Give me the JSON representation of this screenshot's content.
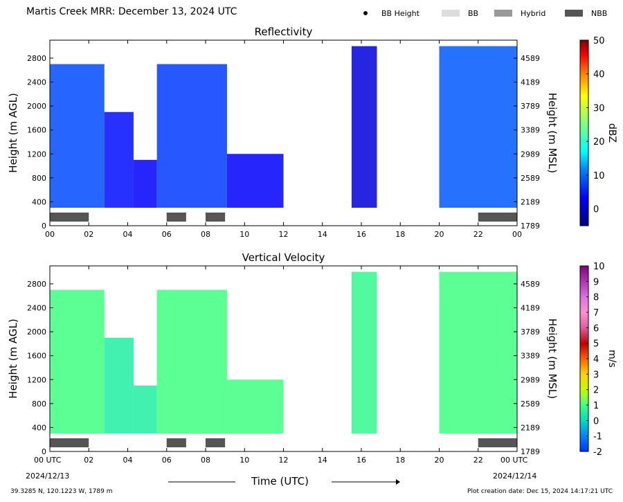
{
  "header": {
    "title": "Martis Creek MRR:  December 13, 2024 UTC",
    "legend": [
      {
        "label": "BB Height",
        "color": "#000000",
        "marker": "dot"
      },
      {
        "label": "BB",
        "color": "#dddddd",
        "marker": "box"
      },
      {
        "label": "Hybrid",
        "color": "#999999",
        "marker": "box"
      },
      {
        "label": "NBB",
        "color": "#555555",
        "marker": "box"
      }
    ]
  },
  "footer": {
    "location": "39.3285 N, 120.1223 W, 1789 m",
    "creation": "Plot creation date: Dec 15, 2024 14:17:21 UTC",
    "xlabel": "Time (UTC)",
    "start_date": "2024/12/13",
    "end_date": "2024/12/14"
  },
  "chart_data": [
    {
      "type": "heatmap",
      "title": "Reflectivity",
      "ylabel": "Height (m AGL)",
      "ylabel_right": "Height (m MSL)",
      "colorbar_label": "dBZ",
      "colorbar_ticks": [
        "50",
        "40",
        "30",
        "20",
        "10",
        "0"
      ],
      "colorbar_range": [
        -5,
        50
      ],
      "xlim": [
        0,
        24
      ],
      "ylim": [
        0,
        3100
      ],
      "x_ticks": [
        "00",
        "02",
        "04",
        "06",
        "08",
        "10",
        "12",
        "14",
        "16",
        "18",
        "20",
        "22",
        "00"
      ],
      "y_ticks": [
        "0",
        "400",
        "800",
        "1200",
        "1600",
        "2000",
        "2400",
        "2800"
      ],
      "y_ticks_right": [
        "1789",
        "2189",
        "2589",
        "2989",
        "3389",
        "3789",
        "4189",
        "4589"
      ],
      "nbb_periods": [
        [
          0.0,
          2.0
        ],
        [
          6.0,
          7.0
        ],
        [
          8.0,
          9.0
        ],
        [
          22.0,
          24.0
        ]
      ],
      "echo_blocks": [
        {
          "x": [
            0.0,
            2.8
          ],
          "top": 2700,
          "value": 8
        },
        {
          "x": [
            2.8,
            4.3
          ],
          "top": 1900,
          "value": 4
        },
        {
          "x": [
            4.3,
            5.5
          ],
          "top": 1100,
          "value": 3
        },
        {
          "x": [
            5.5,
            9.1
          ],
          "top": 2700,
          "value": 7
        },
        {
          "x": [
            9.1,
            12.0
          ],
          "top": 1200,
          "value": 3
        },
        {
          "x": [
            15.5,
            16.8
          ],
          "top": 3000,
          "value": 1
        },
        {
          "x": [
            20.0,
            24.0
          ],
          "top": 3000,
          "value": 9
        }
      ]
    },
    {
      "type": "heatmap",
      "title": "Vertical Velocity",
      "ylabel": "Height (m AGL)",
      "ylabel_right": "Height (m MSL)",
      "colorbar_label": "m/s",
      "colorbar_ticks": [
        "10",
        "9",
        "8",
        "7",
        "6",
        "5",
        "4",
        "3",
        "2",
        "1",
        "0",
        "-1",
        "-2"
      ],
      "colorbar_range": [
        -2,
        10
      ],
      "xlim": [
        0,
        24
      ],
      "ylim": [
        0,
        3100
      ],
      "x_ticks": [
        "00 UTC",
        "02",
        "04",
        "06",
        "08",
        "10",
        "12",
        "14",
        "16",
        "18",
        "20",
        "22",
        "00 UTC"
      ],
      "y_ticks": [
        "0",
        "400",
        "800",
        "1200",
        "1600",
        "2000",
        "2400",
        "2800"
      ],
      "y_ticks_right": [
        "1789",
        "2189",
        "2589",
        "2989",
        "3389",
        "3789",
        "4189",
        "4589"
      ],
      "nbb_periods": [
        [
          0.0,
          2.0
        ],
        [
          6.0,
          7.0
        ],
        [
          8.0,
          9.0
        ],
        [
          22.0,
          24.0
        ]
      ],
      "echo_blocks": [
        {
          "x": [
            0.0,
            2.8
          ],
          "top": 2700,
          "value": 1
        },
        {
          "x": [
            2.8,
            4.3
          ],
          "top": 1900,
          "value": 0.5
        },
        {
          "x": [
            4.3,
            5.5
          ],
          "top": 1100,
          "value": 0.5
        },
        {
          "x": [
            5.5,
            9.1
          ],
          "top": 2700,
          "value": 1
        },
        {
          "x": [
            9.1,
            12.0
          ],
          "top": 1200,
          "value": 1
        },
        {
          "x": [
            15.5,
            16.8
          ],
          "top": 3000,
          "value": 0.8
        },
        {
          "x": [
            20.0,
            24.0
          ],
          "top": 3000,
          "value": 1
        }
      ]
    }
  ]
}
